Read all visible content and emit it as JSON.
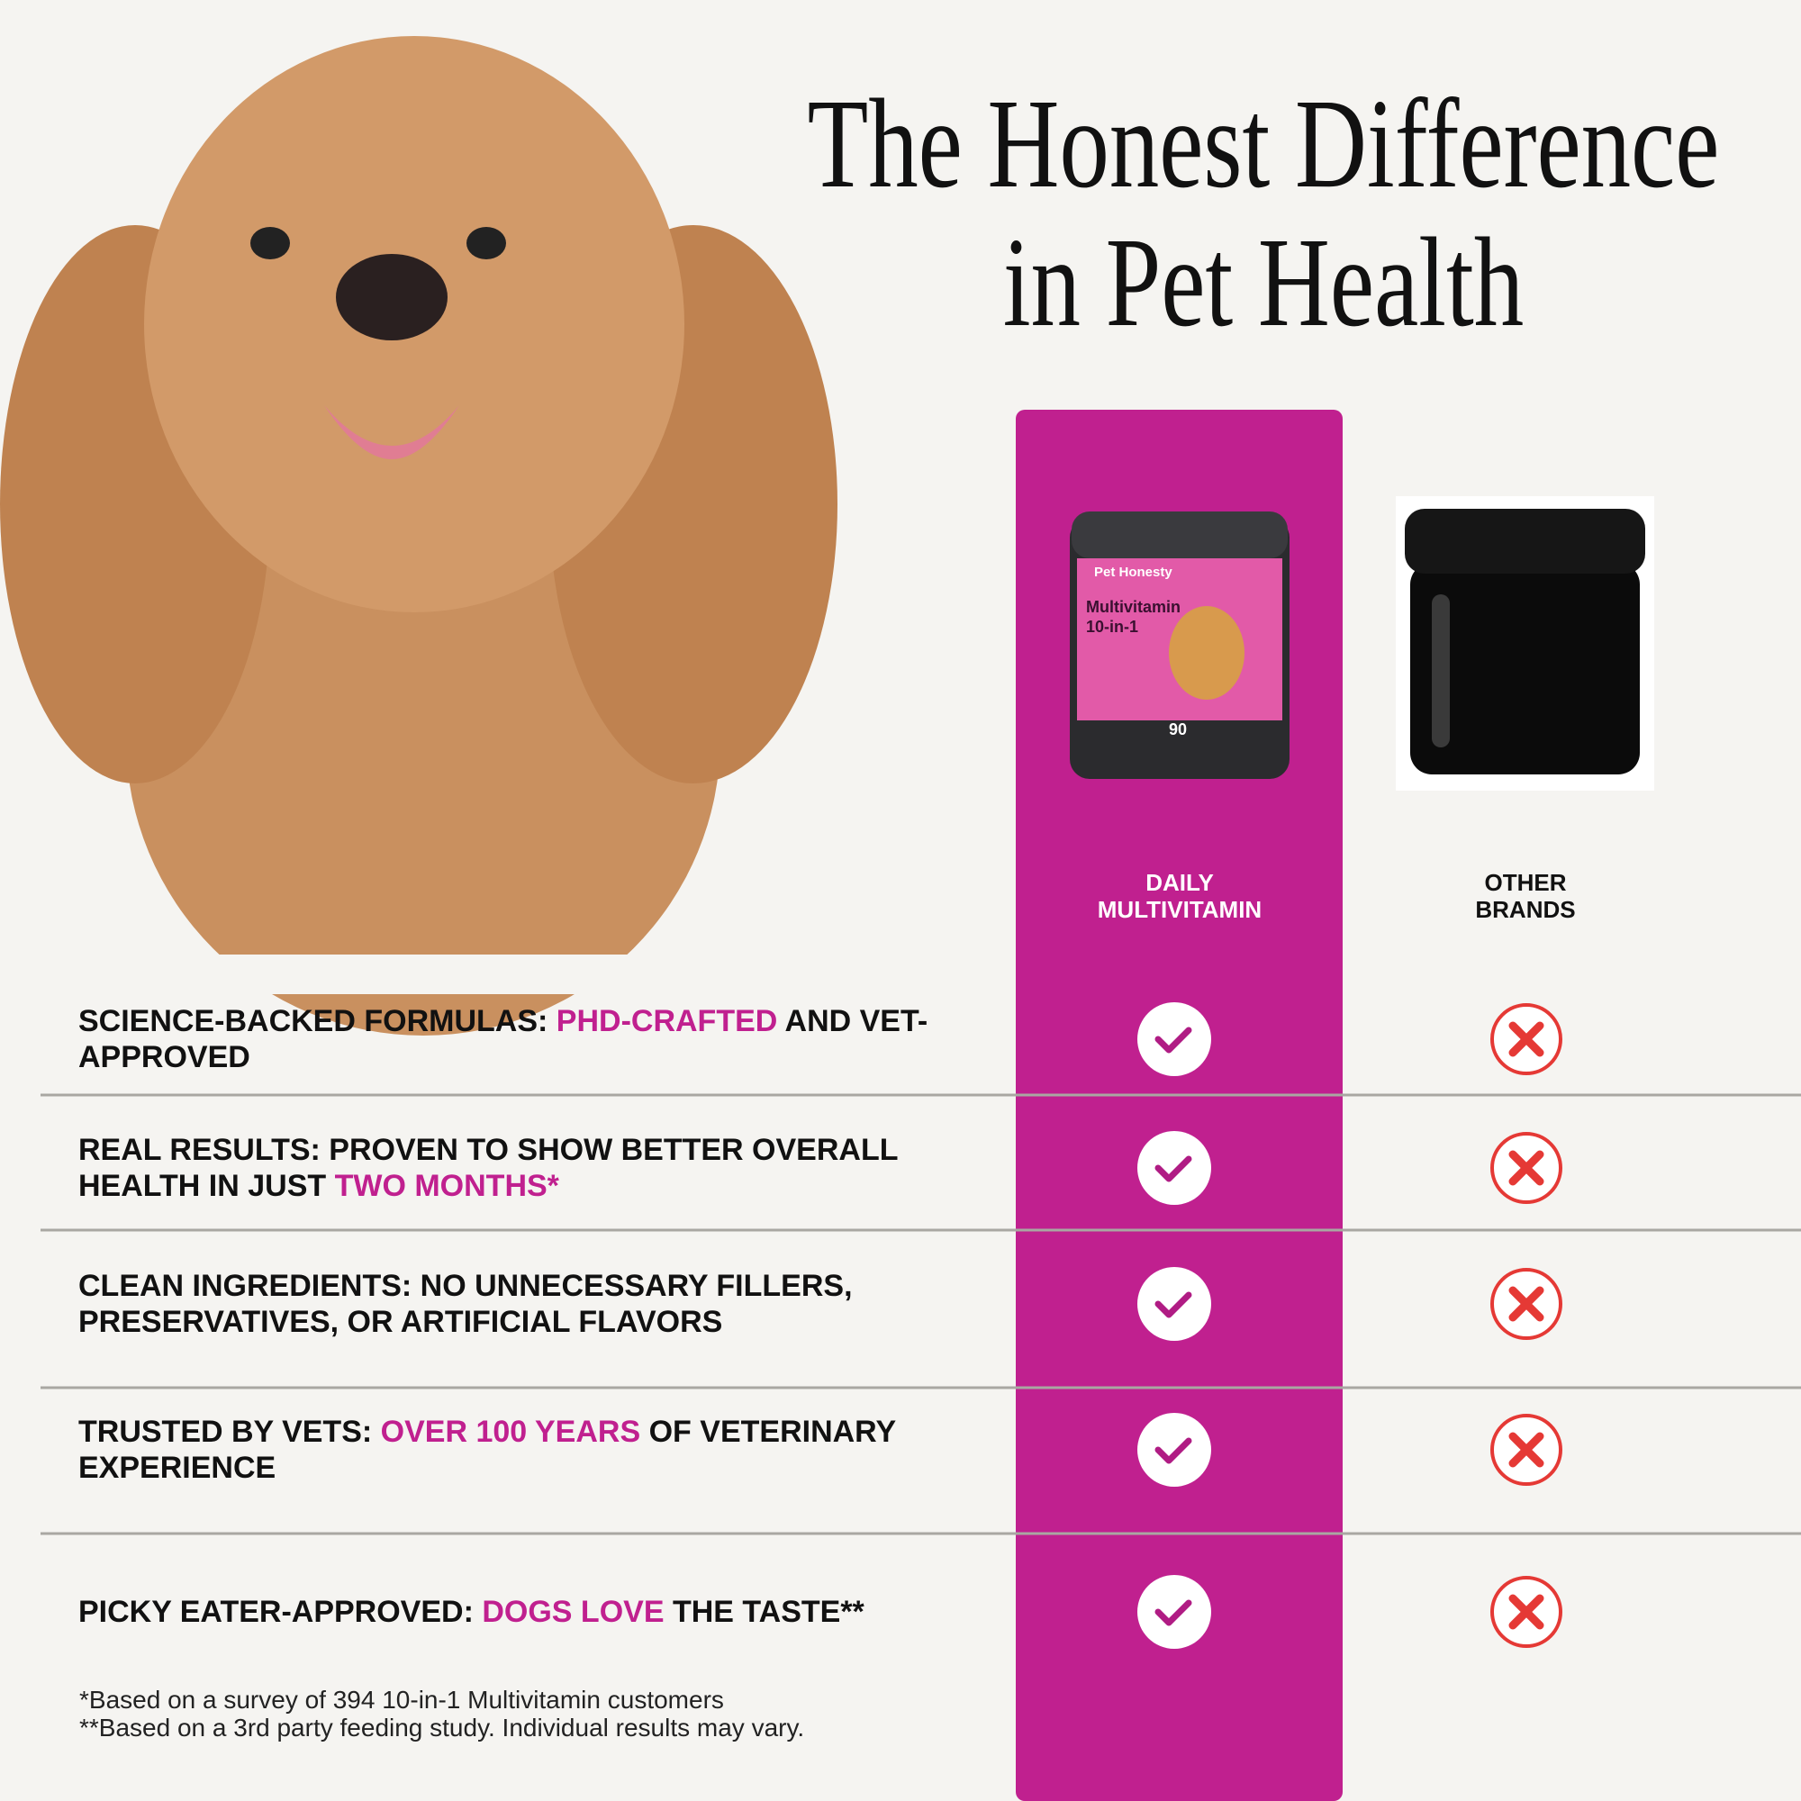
{
  "header": {
    "title_lines": [
      "The Honest Difference",
      "in Pet Health"
    ]
  },
  "columns": [
    {
      "label_lines": [
        "DAILY",
        "MULTIVITAMIN"
      ]
    },
    {
      "label_lines": [
        "OTHER",
        "BRANDS"
      ]
    }
  ],
  "product_label": {
    "brand": "Pet Honesty",
    "name_lines": [
      "Multivitamin",
      "10-in-1"
    ],
    "count": "90"
  },
  "rows": [
    {
      "segments": [
        {
          "text": "SCIENCE-BACKED FORMULAS: ",
          "accent": false
        },
        {
          "text": "PHD-CRAFTED",
          "accent": true
        },
        {
          "text": " AND VET-APPROVED",
          "accent": false
        }
      ]
    },
    {
      "segments": [
        {
          "text": "REAL RESULTS: PROVEN TO SHOW BETTER OVERALL HEALTH IN JUST ",
          "accent": false
        },
        {
          "text": "TWO MONTHS*",
          "accent": true
        }
      ]
    },
    {
      "segments": [
        {
          "text": "CLEAN INGREDIENTS: NO UNNECESSARY FILLERS, PRESERVATIVES, OR ARTIFICIAL FLAVORS",
          "accent": false
        }
      ]
    },
    {
      "segments": [
        {
          "text": "TRUSTED BY VETS: ",
          "accent": false
        },
        {
          "text": "OVER 100 YEARS",
          "accent": true
        },
        {
          "text": " OF VETERINARY EXPERIENCE",
          "accent": false
        }
      ]
    },
    {
      "segments": [
        {
          "text": "PICKY EATER-APPROVED: ",
          "accent": false
        },
        {
          "text": "DOGS LOVE",
          "accent": true
        },
        {
          "text": " THE TASTE**",
          "accent": false
        }
      ]
    }
  ],
  "footnotes": [
    "*Based on a survey of 394 10-in-1 Multivitamin customers",
    "**Based on a 3rd party feeding study. Individual results may vary."
  ]
}
